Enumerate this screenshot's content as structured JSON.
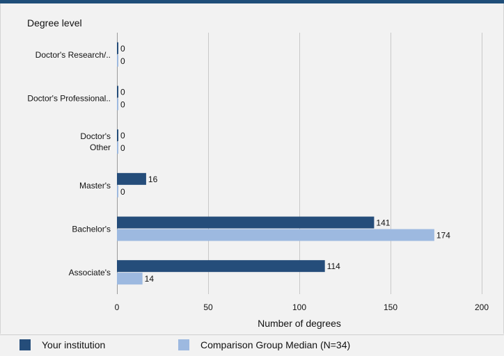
{
  "chart_data": {
    "type": "bar",
    "orientation": "horizontal",
    "y_axis_title": "Degree level",
    "xlabel": "Number of degrees",
    "xlim": [
      0,
      200
    ],
    "x_ticks": [
      0,
      50,
      100,
      150,
      200
    ],
    "grid": true,
    "legend_position": "bottom",
    "categories": [
      [
        "Doctor's Research/.."
      ],
      [
        "Doctor's Professional.."
      ],
      [
        "Doctor's",
        "Other"
      ],
      [
        "Master's"
      ],
      [
        "Bachelor's"
      ],
      [
        "Associate's"
      ]
    ],
    "series": [
      {
        "name": "Your institution",
        "color": "#254d7a",
        "values": [
          0,
          0,
          0,
          16,
          141,
          114
        ]
      },
      {
        "name": "Comparison Group Median (N=34)",
        "color": "#9db9e0",
        "values": [
          0,
          0,
          0,
          0,
          174,
          14
        ]
      }
    ]
  },
  "legend": {
    "items": [
      {
        "label": "Your institution",
        "color": "#254d7a"
      },
      {
        "label": "Comparison Group Median (N=34)",
        "color": "#9db9e0"
      }
    ]
  }
}
